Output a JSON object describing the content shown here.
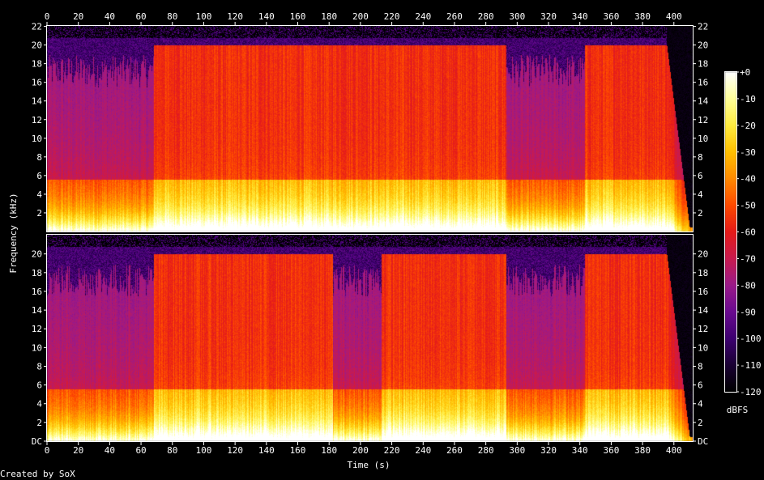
{
  "chart_data": {
    "type": "heatmap",
    "xlabel": "Time (s)",
    "ylabel": "Frequency (kHz)",
    "x_ticks": [
      0,
      20,
      40,
      60,
      80,
      100,
      120,
      140,
      160,
      180,
      200,
      220,
      240,
      260,
      280,
      300,
      320,
      340,
      360,
      380,
      400
    ],
    "xlim": [
      0,
      412
    ],
    "channels": [
      {
        "y_tick_labels": [
          "2",
          "4",
          "6",
          "8",
          "10",
          "12",
          "14",
          "16",
          "18",
          "20",
          "22"
        ],
        "y_ticks_khz": [
          2,
          4,
          6,
          8,
          10,
          12,
          14,
          16,
          18,
          20,
          22
        ],
        "ylim_khz": [
          0,
          22.05
        ],
        "cutoff_khz": 20,
        "quiet_sections_s": [
          [
            0,
            68
          ],
          [
            293,
            343
          ]
        ]
      },
      {
        "y_tick_labels": [
          "DC",
          "2",
          "4",
          "6",
          "8",
          "10",
          "12",
          "14",
          "16",
          "18",
          "20"
        ],
        "y_ticks_khz": [
          0,
          2,
          4,
          6,
          8,
          10,
          12,
          14,
          16,
          18,
          20
        ],
        "ylim_khz": [
          0,
          22.05
        ],
        "cutoff_khz": 20,
        "quiet_sections_s": [
          [
            0,
            68
          ],
          [
            182,
            213
          ],
          [
            293,
            343
          ]
        ]
      }
    ],
    "colorbar": {
      "label": "dBFS",
      "ticks": [
        "+0",
        "-10",
        "-20",
        "-30",
        "-40",
        "-50",
        "-60",
        "-70",
        "-80",
        "-90",
        "-100",
        "-110",
        "-120"
      ],
      "range_db": [
        -120,
        0
      ],
      "colors": [
        "#000000",
        "#1a0033",
        "#3d0070",
        "#6a0a90",
        "#9a1a8a",
        "#c81a50",
        "#e51a1a",
        "#ff4a00",
        "#ff8a00",
        "#ffc000",
        "#ffec40",
        "#ffff99",
        "#ffffff"
      ]
    },
    "footer": "Created by SoX"
  }
}
